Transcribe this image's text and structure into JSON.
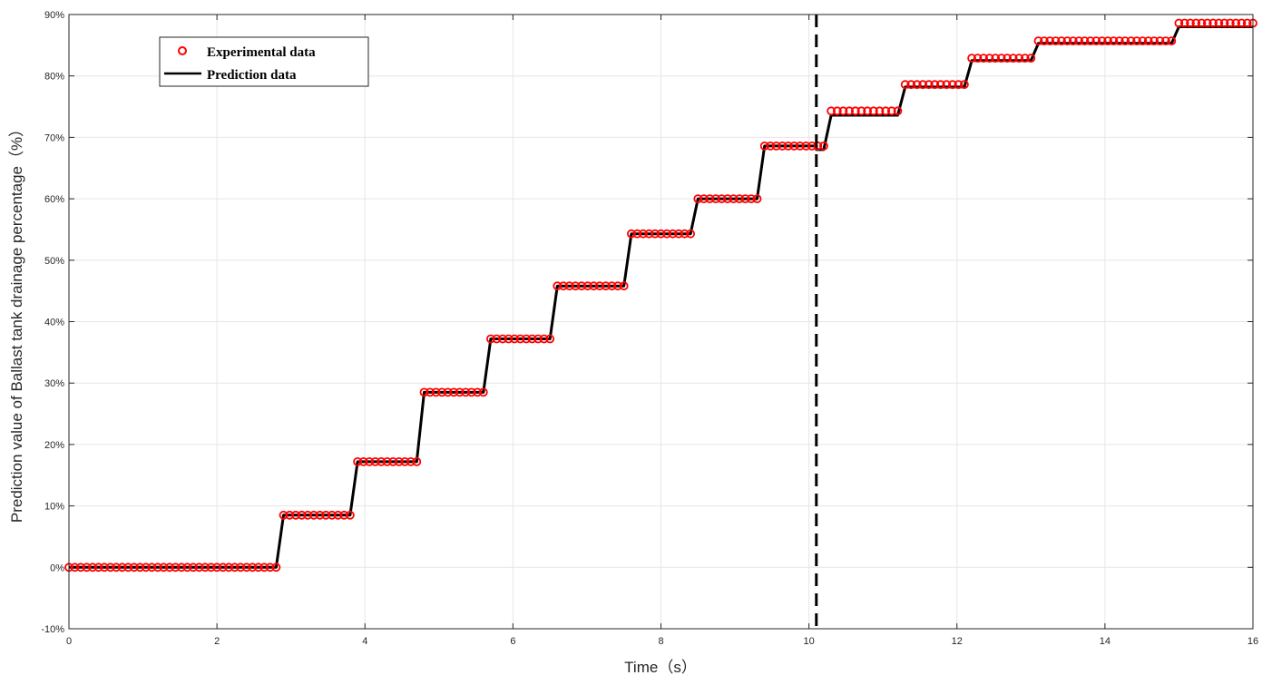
{
  "chart_data": {
    "type": "line",
    "title": "",
    "xlabel": "Time（s）",
    "ylabel": "Prediction value of Ballast tank drainage percentage（%）",
    "xlim": [
      0,
      16
    ],
    "ylim": [
      -10,
      90
    ],
    "x_ticks": [
      0,
      2,
      4,
      6,
      8,
      10,
      12,
      14,
      16
    ],
    "x_tick_labels": [
      "0",
      "2",
      "4",
      "6",
      "8",
      "10",
      "12",
      "14",
      "16"
    ],
    "y_ticks": [
      -10,
      0,
      10,
      20,
      30,
      40,
      50,
      60,
      70,
      80,
      90
    ],
    "y_tick_labels": [
      "-10%",
      "0%",
      "10%",
      "20%",
      "30%",
      "40%",
      "50%",
      "60%",
      "70%",
      "80%",
      "90%"
    ],
    "grid": true,
    "legend_position": "top-left",
    "marker_spacing_s": 0.08,
    "vertical_marker_line": {
      "x": 10.1,
      "style": "dashed",
      "color": "#000000"
    },
    "series": [
      {
        "name": "Experimental data",
        "style": "markers",
        "marker": "circle",
        "color": "#ff0000",
        "steps": [
          {
            "x_start": 0.0,
            "x_end": 2.8,
            "y": 0.0
          },
          {
            "x_start": 2.9,
            "x_end": 3.8,
            "y": 8.5
          },
          {
            "x_start": 3.9,
            "x_end": 4.7,
            "y": 17.2
          },
          {
            "x_start": 4.8,
            "x_end": 5.6,
            "y": 28.5
          },
          {
            "x_start": 5.7,
            "x_end": 6.5,
            "y": 37.2
          },
          {
            "x_start": 6.6,
            "x_end": 7.5,
            "y": 45.8
          },
          {
            "x_start": 7.6,
            "x_end": 8.4,
            "y": 54.3
          },
          {
            "x_start": 8.5,
            "x_end": 9.3,
            "y": 60.0
          },
          {
            "x_start": 9.4,
            "x_end": 10.2,
            "y": 68.6
          },
          {
            "x_start": 10.3,
            "x_end": 11.2,
            "y": 74.3
          },
          {
            "x_start": 11.3,
            "x_end": 12.1,
            "y": 78.6
          },
          {
            "x_start": 12.2,
            "x_end": 13.0,
            "y": 82.9
          },
          {
            "x_start": 13.1,
            "x_end": 14.9,
            "y": 85.7
          },
          {
            "x_start": 15.0,
            "x_end": 16.0,
            "y": 88.6
          }
        ]
      },
      {
        "name": "Prediction data",
        "style": "line",
        "color": "#000000",
        "steps": [
          {
            "x_start": 0.0,
            "x_end": 2.8,
            "y": 0.0
          },
          {
            "x_start": 2.9,
            "x_end": 3.8,
            "y": 8.5
          },
          {
            "x_start": 3.9,
            "x_end": 4.7,
            "y": 17.2
          },
          {
            "x_start": 4.8,
            "x_end": 5.6,
            "y": 28.5
          },
          {
            "x_start": 5.7,
            "x_end": 6.5,
            "y": 37.2
          },
          {
            "x_start": 6.6,
            "x_end": 7.5,
            "y": 45.8
          },
          {
            "x_start": 7.6,
            "x_end": 8.4,
            "y": 54.3
          },
          {
            "x_start": 8.5,
            "x_end": 9.3,
            "y": 60.0
          },
          {
            "x_start": 9.4,
            "x_end": 10.1,
            "y": 68.6
          },
          {
            "x_start": 10.1,
            "x_end": 10.2,
            "y": 68.0
          },
          {
            "x_start": 10.3,
            "x_end": 11.2,
            "y": 73.6
          },
          {
            "x_start": 11.3,
            "x_end": 12.1,
            "y": 78.2
          },
          {
            "x_start": 12.2,
            "x_end": 13.0,
            "y": 82.5
          },
          {
            "x_start": 13.1,
            "x_end": 14.9,
            "y": 85.3
          },
          {
            "x_start": 15.0,
            "x_end": 16.0,
            "y": 88.0
          }
        ]
      }
    ]
  }
}
